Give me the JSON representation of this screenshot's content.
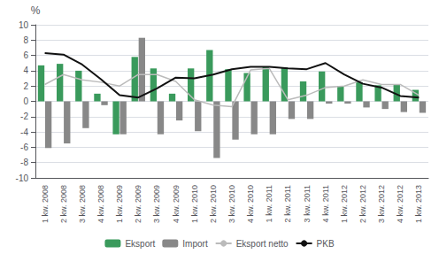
{
  "chart_data": {
    "type": "bar",
    "categories": [
      "1 kw. 2008",
      "2 kw. 2008",
      "3 kw. 2008",
      "4 kw. 2008",
      "1 kw. 2009",
      "2 kw. 2009",
      "3 kw. 2009",
      "4 kw. 2009",
      "1 kw. 2010",
      "2 kw. 2010",
      "3 kw. 2010",
      "4 kw. 2010",
      "1 kw. 2011",
      "2 kw. 2011",
      "3 kw. 2011",
      "4 kw. 2011",
      "1 kw. 2012",
      "2 kw. 2012",
      "3 kw. 2012",
      "4 kw. 2012",
      "1 kw. 2013"
    ],
    "series": [
      {
        "name": "Eksport",
        "type": "bar",
        "color": "#3a9a5c",
        "values": [
          4.7,
          4.9,
          4.0,
          1.0,
          -4.3,
          5.8,
          4.3,
          1.0,
          4.3,
          6.7,
          4.2,
          3.7,
          4.5,
          4.4,
          2.6,
          3.9,
          2.0,
          2.5,
          2.1,
          2.2,
          1.5
        ]
      },
      {
        "name": "Import",
        "type": "bar",
        "color": "#888888",
        "values": [
          -6.1,
          -5.5,
          -3.5,
          -0.5,
          -4.3,
          8.3,
          -4.3,
          -2.5,
          -3.9,
          -7.4,
          -5.0,
          -4.3,
          -4.3,
          -2.3,
          -2.3,
          -0.3,
          -0.3,
          -0.8,
          -1.0,
          -1.4,
          -1.5
        ]
      },
      {
        "name": "Eksport netto",
        "type": "line",
        "color": "#bbbbbb",
        "values": [
          2.2,
          3.5,
          2.8,
          2.5,
          2.0,
          3.5,
          3.5,
          2.6,
          0.2,
          -0.5,
          -0.7,
          4.1,
          4.3,
          0.2,
          0.8,
          1.8,
          2.0,
          2.8,
          2.2,
          2.2,
          0.8
        ]
      },
      {
        "name": "PKB",
        "type": "line",
        "color": "#111111",
        "values": [
          6.3,
          6.1,
          4.8,
          2.9,
          0.8,
          0.5,
          1.7,
          3.1,
          3.0,
          3.5,
          4.2,
          4.5,
          4.5,
          4.3,
          4.2,
          5.0,
          3.5,
          2.3,
          1.8,
          0.7,
          0.5
        ]
      }
    ],
    "ylabel": "%",
    "ylim": [
      -10,
      10
    ],
    "yticks": [
      -10,
      -8,
      -6,
      -4,
      -2,
      0,
      2,
      4,
      6,
      8,
      10
    ],
    "grid": true,
    "legend": "bottom"
  }
}
